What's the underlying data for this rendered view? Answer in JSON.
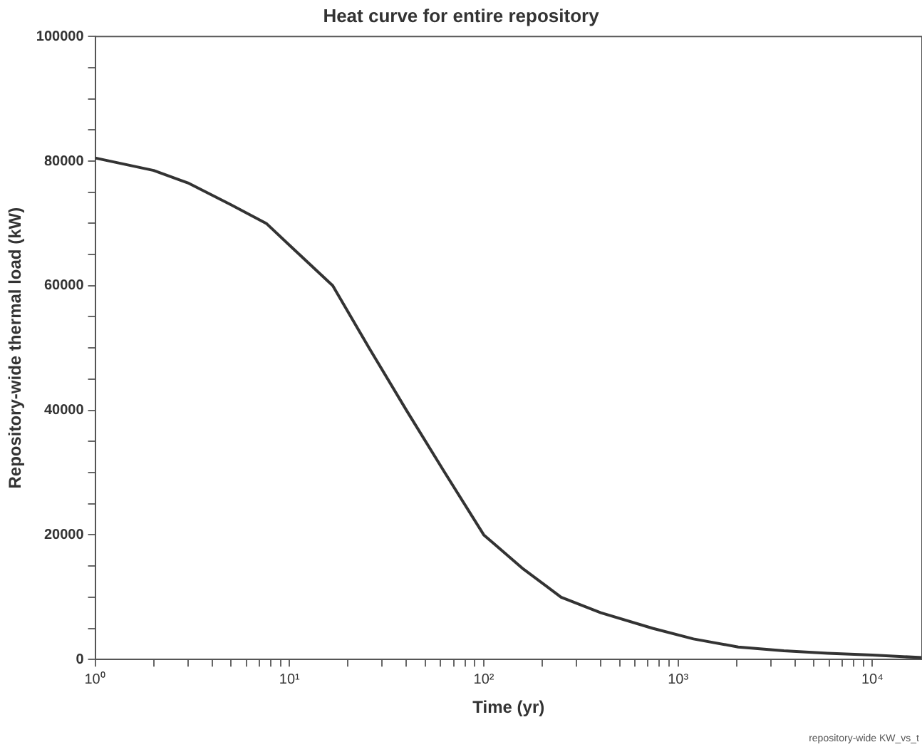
{
  "chart_data": {
    "type": "line",
    "title": "Heat curve for entire repository",
    "xlabel": "Time (yr)",
    "ylabel": "Repository-wide thermal load (kW)",
    "annotations": [
      "repository-wide KW_vs_t"
    ],
    "log": "x",
    "grid": false,
    "legend": false,
    "marker": "none",
    "line_style": "solid",
    "x": [
      1,
      2,
      3,
      5,
      7.6,
      10,
      16.7,
      25.7,
      40,
      63,
      100,
      160,
      250,
      400,
      740,
      1200,
      2040,
      3500,
      5900,
      10000,
      18000
    ],
    "series": [
      {
        "color": "#333333",
        "values": [
          80500,
          78500,
          76500,
          73000,
          70000,
          66500,
          60000,
          50000,
          40000,
          30000,
          20000,
          14500,
          10000,
          7500,
          5000,
          3300,
          2000,
          1400,
          1000,
          700,
          300
        ]
      }
    ],
    "xlim": [
      1,
      18000
    ],
    "xticks": [
      {
        "value": 1,
        "label": "10⁰"
      },
      {
        "value": 2,
        "label": null
      },
      {
        "value": 3,
        "label": null
      },
      {
        "value": 4,
        "label": null
      },
      {
        "value": 5,
        "label": null
      },
      {
        "value": 6,
        "label": null
      },
      {
        "value": 7,
        "label": null
      },
      {
        "value": 8,
        "label": null
      },
      {
        "value": 9,
        "label": null
      },
      {
        "value": 10,
        "label": "10¹"
      },
      {
        "value": 20,
        "label": null
      },
      {
        "value": 30,
        "label": null
      },
      {
        "value": 40,
        "label": null
      },
      {
        "value": 50,
        "label": null
      },
      {
        "value": 60,
        "label": null
      },
      {
        "value": 70,
        "label": null
      },
      {
        "value": 80,
        "label": null
      },
      {
        "value": 90,
        "label": null
      },
      {
        "value": 100,
        "label": "10²"
      },
      {
        "value": 200,
        "label": null
      },
      {
        "value": 300,
        "label": null
      },
      {
        "value": 400,
        "label": null
      },
      {
        "value": 500,
        "label": null
      },
      {
        "value": 600,
        "label": null
      },
      {
        "value": 700,
        "label": null
      },
      {
        "value": 800,
        "label": null
      },
      {
        "value": 900,
        "label": null
      },
      {
        "value": 1000,
        "label": "10³"
      },
      {
        "value": 2000,
        "label": null
      },
      {
        "value": 3000,
        "label": null
      },
      {
        "value": 4000,
        "label": null
      },
      {
        "value": 5000,
        "label": null
      },
      {
        "value": 6000,
        "label": null
      },
      {
        "value": 7000,
        "label": null
      },
      {
        "value": 8000,
        "label": null
      },
      {
        "value": 9000,
        "label": null
      },
      {
        "value": 10000,
        "label": "10⁴"
      }
    ],
    "ylim": [
      0,
      100000
    ],
    "yticks": [
      0,
      {
        "value": 5000,
        "label": null
      },
      {
        "value": 10000,
        "label": null
      },
      {
        "value": 15000,
        "label": null
      },
      20000,
      {
        "value": 25000,
        "label": null
      },
      {
        "value": 30000,
        "label": null
      },
      {
        "value": 35000,
        "label": null
      },
      40000,
      {
        "value": 45000,
        "label": null
      },
      {
        "value": 50000,
        "label": null
      },
      {
        "value": 55000,
        "label": null
      },
      60000,
      {
        "value": 65000,
        "label": null
      },
      {
        "value": 70000,
        "label": null
      },
      {
        "value": 75000,
        "label": null
      },
      80000,
      {
        "value": 85000,
        "label": null
      },
      {
        "value": 90000,
        "label": null
      },
      {
        "value": 95000,
        "label": null
      },
      100000
    ]
  }
}
